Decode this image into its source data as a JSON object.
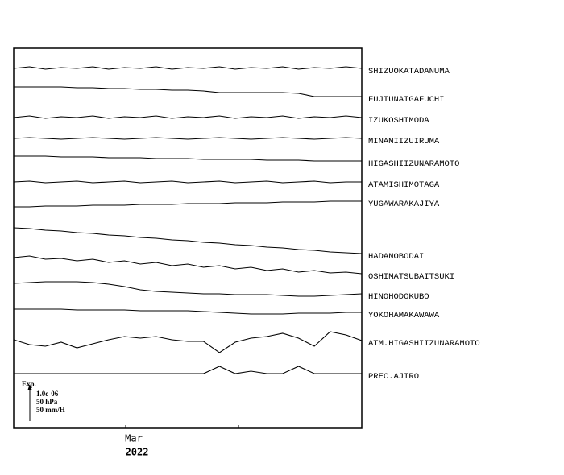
{
  "chart_data": {
    "type": "multi-trace",
    "xlim": [
      0,
      22
    ],
    "ylim": [
      0,
      472
    ],
    "xticks": [
      {
        "value": 7.08,
        "label": "Mar"
      },
      {
        "value": 14.21,
        "label": null
      }
    ],
    "x_year_label": "2022",
    "scale_bar": {
      "title": "Exp.",
      "labels": [
        "1.0e-06",
        "50 hPa",
        "50 mm/H"
      ]
    },
    "color": "#000000",
    "series": [
      {
        "name": "SHIZUOKATADANUMA",
        "values": [
          447,
          449,
          446,
          448,
          447,
          449,
          446,
          448,
          447,
          449,
          446,
          448,
          447,
          449,
          446,
          448,
          447,
          449,
          446,
          448,
          447,
          449,
          447
        ]
      },
      {
        "name": "FUJIUNAIGAFUCHI",
        "values": [
          424,
          424,
          424,
          424,
          423,
          423,
          422,
          422,
          421,
          421,
          420,
          420,
          419,
          417,
          417,
          417,
          417,
          417,
          416,
          412,
          412,
          412,
          412
        ]
      },
      {
        "name": "IZUKOSHIMODA",
        "values": [
          386,
          388,
          385,
          387,
          386,
          388,
          385,
          387,
          386,
          388,
          385,
          387,
          386,
          388,
          385,
          387,
          386,
          388,
          385,
          387,
          386,
          388,
          386
        ]
      },
      {
        "name": "MINAMIIZUIRUMA",
        "values": [
          360,
          361,
          360,
          359,
          360,
          361,
          360,
          359,
          360,
          361,
          360,
          359,
          360,
          361,
          360,
          359,
          360,
          361,
          360,
          359,
          360,
          361,
          360
        ]
      },
      {
        "name": "HIGASHIIZUNARAMOTO",
        "values": [
          338,
          338,
          338,
          337,
          337,
          337,
          336,
          336,
          336,
          335,
          335,
          335,
          334,
          334,
          334,
          334,
          333,
          333,
          333,
          332,
          332,
          332,
          332
        ]
      },
      {
        "name": "ATAMISHIMOTAGA",
        "values": [
          306,
          307,
          305,
          306,
          307,
          305,
          306,
          307,
          305,
          306,
          307,
          305,
          306,
          307,
          305,
          306,
          307,
          305,
          306,
          307,
          305,
          306,
          306
        ]
      },
      {
        "name": "YUGAWARAKAJIYA",
        "values": [
          275,
          275,
          276,
          276,
          276,
          277,
          277,
          277,
          278,
          278,
          278,
          279,
          279,
          279,
          280,
          280,
          280,
          281,
          281,
          281,
          282,
          282,
          282
        ]
      },
      {
        "name": "HADANOBODAI",
        "values": [
          249,
          248,
          246,
          245,
          243,
          242,
          240,
          239,
          237,
          236,
          234,
          233,
          231,
          230,
          228,
          227,
          225,
          224,
          222,
          221,
          219,
          218,
          217
        ]
      },
      {
        "name": "OSHIMATSUBAITSUKI",
        "values": [
          212,
          214,
          210,
          211,
          208,
          210,
          206,
          208,
          204,
          206,
          202,
          204,
          200,
          202,
          198,
          200,
          196,
          198,
          194,
          196,
          193,
          194,
          192
        ]
      },
      {
        "name": "HINOHODOKUBO",
        "values": [
          180,
          181,
          182,
          182,
          182,
          181,
          179,
          176,
          172,
          170,
          169,
          168,
          167,
          167,
          166,
          166,
          166,
          165,
          164,
          164,
          165,
          166,
          167
        ]
      },
      {
        "name": "YOKOHAMAKAWAWA",
        "values": [
          148,
          148,
          148,
          148,
          147,
          147,
          147,
          147,
          146,
          146,
          146,
          146,
          145,
          144,
          143,
          142,
          142,
          142,
          143,
          143,
          143,
          144,
          144
        ]
      },
      {
        "name": "ATM.HIGASHIIZUNARAMOTO",
        "values": [
          110,
          104,
          102,
          107,
          100,
          105,
          110,
          114,
          112,
          114,
          110,
          108,
          108,
          94,
          107,
          112,
          114,
          118,
          112,
          102,
          120,
          116,
          109
        ]
      },
      {
        "name": "PREC.AJIRO",
        "values": [
          68,
          68,
          68,
          68,
          68,
          68,
          68,
          68,
          68,
          68,
          68,
          68,
          68,
          77,
          68,
          71,
          68,
          68,
          77,
          68,
          68,
          68,
          68
        ]
      }
    ]
  }
}
